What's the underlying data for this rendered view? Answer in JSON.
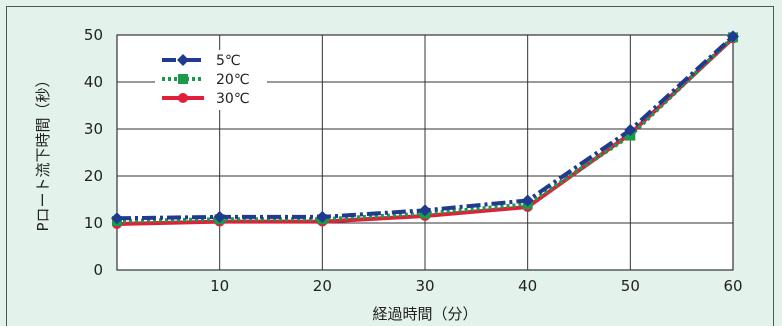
{
  "chart_data": {
    "type": "line",
    "x": [
      0,
      10,
      20,
      30,
      40,
      50,
      60
    ],
    "series": [
      {
        "name": "5℃",
        "color": "#1f3a8f",
        "marker": "diamond",
        "dash": "dashdot",
        "values": [
          11,
          11.3,
          11.3,
          12.7,
          14.8,
          29.8,
          49.7
        ]
      },
      {
        "name": "20℃",
        "color": "#1a9a4a",
        "marker": "square",
        "dash": "dotted",
        "values": [
          10.4,
          10.8,
          10.8,
          12.0,
          14.0,
          28.6,
          49.5
        ]
      },
      {
        "name": "30℃",
        "color": "#e0203a",
        "marker": "circle",
        "dash": "solid",
        "values": [
          9.8,
          10.3,
          10.3,
          11.5,
          13.4,
          29.0,
          49.3
        ]
      }
    ],
    "xlabel": "経過時間（分）",
    "ylabel": "Pロート流下時間（秒）",
    "xlim": [
      0,
      60
    ],
    "ylim": [
      0,
      50
    ],
    "xticks": [
      "10",
      "20",
      "30",
      "40",
      "50",
      "60"
    ],
    "yticks": [
      "0",
      "10",
      "20",
      "30",
      "40",
      "50"
    ],
    "grid": true,
    "legend": "top-left"
  }
}
